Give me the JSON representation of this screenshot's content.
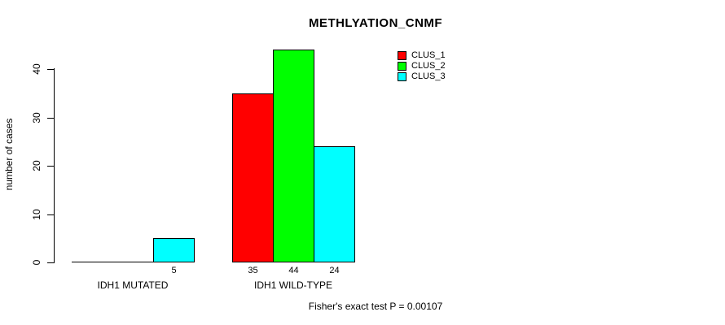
{
  "title": "METHLYATION_CNMF",
  "footer": "Fisher's exact test P = 0.00107",
  "y_axis": {
    "label": "number of cases",
    "ticks": [
      "0",
      "10",
      "20",
      "30",
      "40"
    ]
  },
  "chart_data": {
    "type": "bar",
    "title": "METHLYATION_CNMF",
    "xlabel": "",
    "ylabel": "number of cases",
    "ylim": [
      0,
      44
    ],
    "yticks": [
      0,
      10,
      20,
      30,
      40
    ],
    "grid": false,
    "legend_position": "top-right",
    "categories": [
      "IDH1 MUTATED",
      "IDH1 WILD-TYPE"
    ],
    "series": [
      {
        "name": "CLUS_1",
        "color": "#ff0000",
        "values": [
          0,
          35
        ]
      },
      {
        "name": "CLUS_2",
        "color": "#00ff00",
        "values": [
          0,
          44
        ]
      },
      {
        "name": "CLUS_3",
        "color": "#00ffff",
        "values": [
          5,
          24
        ]
      }
    ],
    "bar_value_labels": [
      [
        null,
        null,
        "5"
      ],
      [
        "35",
        "44",
        "24"
      ]
    ],
    "annotation": "Fisher's exact test P = 0.00107"
  }
}
